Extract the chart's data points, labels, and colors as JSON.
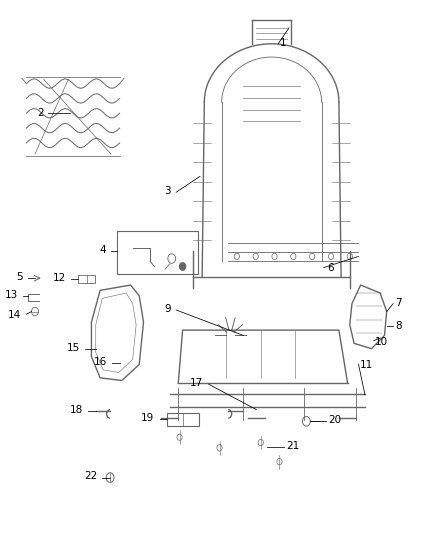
{
  "title": "",
  "background_color": "#ffffff",
  "fig_width": 4.38,
  "fig_height": 5.33,
  "dpi": 100,
  "line_color": "#666666",
  "text_color": "#000000",
  "label_fontsize": 7.5
}
